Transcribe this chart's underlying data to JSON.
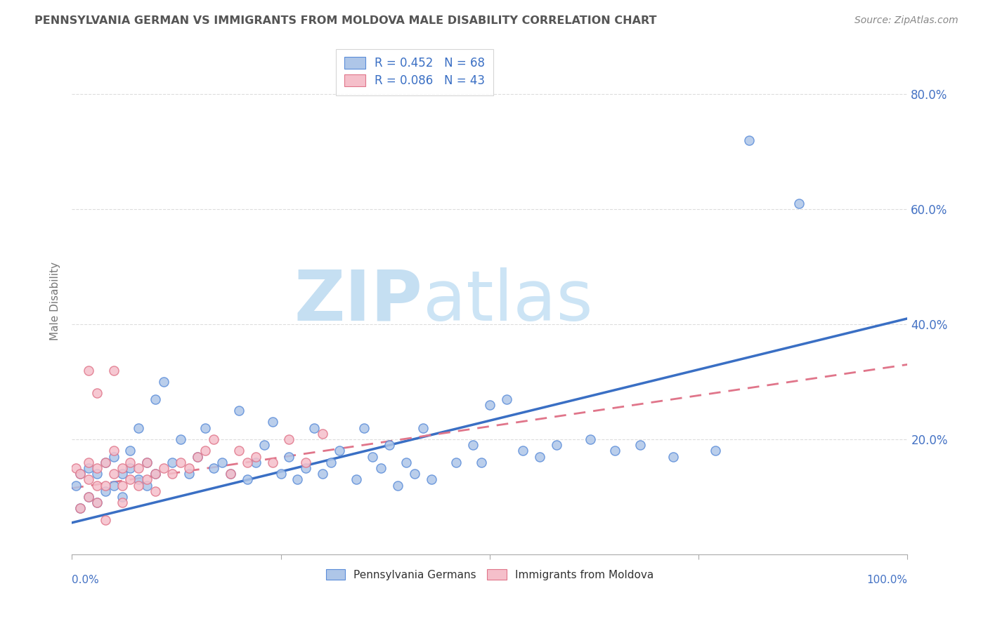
{
  "title": "PENNSYLVANIA GERMAN VS IMMIGRANTS FROM MOLDOVA MALE DISABILITY CORRELATION CHART",
  "source": "Source: ZipAtlas.com",
  "ylabel": "Male Disability",
  "blue_label": "Pennsylvania Germans",
  "pink_label": "Immigrants from Moldova",
  "blue_R": 0.452,
  "blue_N": 68,
  "pink_R": 0.086,
  "pink_N": 43,
  "blue_color": "#aec6e8",
  "blue_edge_color": "#5b8dd9",
  "blue_line_color": "#3a6fc4",
  "pink_color": "#f5bfca",
  "pink_edge_color": "#e0758a",
  "pink_line_color": "#e0758a",
  "watermark_color": "#cde3f5",
  "title_color": "#555555",
  "legend_text_color": "#3a6fc4",
  "axis_tick_color": "#4472c4",
  "grid_color": "#dddddd",
  "blue_line_intercept": 0.055,
  "blue_line_slope": 0.355,
  "pink_line_intercept": 0.115,
  "pink_line_slope": 0.215,
  "blue_x": [
    0.005,
    0.01,
    0.01,
    0.02,
    0.02,
    0.03,
    0.03,
    0.04,
    0.04,
    0.05,
    0.05,
    0.06,
    0.06,
    0.07,
    0.07,
    0.08,
    0.08,
    0.09,
    0.09,
    0.1,
    0.1,
    0.11,
    0.12,
    0.13,
    0.14,
    0.15,
    0.16,
    0.17,
    0.18,
    0.19,
    0.2,
    0.21,
    0.22,
    0.23,
    0.24,
    0.25,
    0.26,
    0.27,
    0.28,
    0.29,
    0.3,
    0.31,
    0.32,
    0.34,
    0.35,
    0.36,
    0.37,
    0.38,
    0.39,
    0.4,
    0.41,
    0.42,
    0.43,
    0.46,
    0.48,
    0.49,
    0.5,
    0.52,
    0.54,
    0.56,
    0.58,
    0.62,
    0.65,
    0.68,
    0.72,
    0.77,
    0.81,
    0.87
  ],
  "blue_y": [
    0.12,
    0.14,
    0.08,
    0.15,
    0.1,
    0.14,
    0.09,
    0.16,
    0.11,
    0.17,
    0.12,
    0.14,
    0.1,
    0.15,
    0.18,
    0.22,
    0.13,
    0.16,
    0.12,
    0.27,
    0.14,
    0.3,
    0.16,
    0.2,
    0.14,
    0.17,
    0.22,
    0.15,
    0.16,
    0.14,
    0.25,
    0.13,
    0.16,
    0.19,
    0.23,
    0.14,
    0.17,
    0.13,
    0.15,
    0.22,
    0.14,
    0.16,
    0.18,
    0.13,
    0.22,
    0.17,
    0.15,
    0.19,
    0.12,
    0.16,
    0.14,
    0.22,
    0.13,
    0.16,
    0.19,
    0.16,
    0.26,
    0.27,
    0.18,
    0.17,
    0.19,
    0.2,
    0.18,
    0.19,
    0.17,
    0.18,
    0.72,
    0.61
  ],
  "pink_x": [
    0.005,
    0.01,
    0.01,
    0.02,
    0.02,
    0.02,
    0.03,
    0.03,
    0.03,
    0.04,
    0.04,
    0.04,
    0.05,
    0.05,
    0.06,
    0.06,
    0.06,
    0.07,
    0.07,
    0.08,
    0.08,
    0.09,
    0.09,
    0.1,
    0.1,
    0.11,
    0.12,
    0.13,
    0.14,
    0.15,
    0.16,
    0.17,
    0.19,
    0.2,
    0.21,
    0.22,
    0.24,
    0.26,
    0.28,
    0.3,
    0.02,
    0.03,
    0.05
  ],
  "pink_y": [
    0.15,
    0.14,
    0.08,
    0.16,
    0.13,
    0.1,
    0.15,
    0.12,
    0.09,
    0.16,
    0.12,
    0.06,
    0.14,
    0.18,
    0.15,
    0.12,
    0.09,
    0.16,
    0.13,
    0.15,
    0.12,
    0.16,
    0.13,
    0.14,
    0.11,
    0.15,
    0.14,
    0.16,
    0.15,
    0.17,
    0.18,
    0.2,
    0.14,
    0.18,
    0.16,
    0.17,
    0.16,
    0.2,
    0.16,
    0.21,
    0.32,
    0.28,
    0.32
  ]
}
